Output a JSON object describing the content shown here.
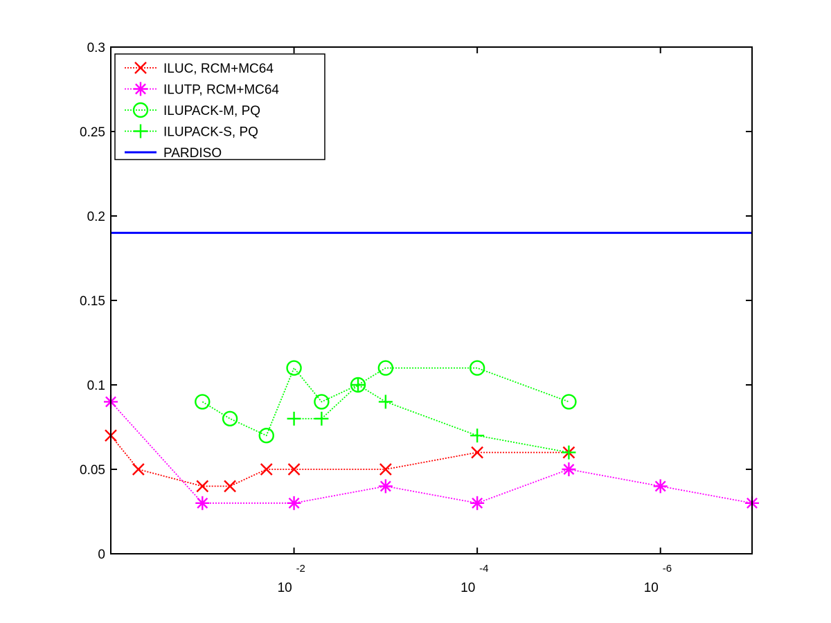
{
  "chart_data": {
    "type": "line",
    "x_scale": "log",
    "x_reversed": true,
    "xlim": [
      1,
      1e-07
    ],
    "ylim": [
      0,
      0.3
    ],
    "grid": false,
    "legend_position": "top-left",
    "x_ticks": [
      {
        "value": 0.01,
        "base": "10",
        "exponent": "-2"
      },
      {
        "value": 0.0001,
        "base": "10",
        "exponent": "-4"
      },
      {
        "value": 1e-06,
        "base": "10",
        "exponent": "-6"
      }
    ],
    "y_ticks": [
      {
        "value": 0,
        "label": "0"
      },
      {
        "value": 0.05,
        "label": "0.05"
      },
      {
        "value": 0.1,
        "label": "0.1"
      },
      {
        "value": 0.15,
        "label": "0.15"
      },
      {
        "value": 0.2,
        "label": "0.2"
      },
      {
        "value": 0.25,
        "label": "0.25"
      },
      {
        "value": 0.3,
        "label": "0.3"
      }
    ],
    "series": [
      {
        "name": "ILUC, RCM+MC64",
        "color": "#ff0000",
        "marker": "x",
        "line": "dotted",
        "points": [
          [
            1,
            0.07
          ],
          [
            0.5,
            0.05
          ],
          [
            0.1,
            0.04
          ],
          [
            0.05,
            0.04
          ],
          [
            0.02,
            0.05
          ],
          [
            0.01,
            0.05
          ],
          [
            0.001,
            0.05
          ],
          [
            0.0001,
            0.06
          ],
          [
            1e-05,
            0.06
          ]
        ]
      },
      {
        "name": "ILUTP, RCM+MC64",
        "color": "#ff00ff",
        "marker": "asterisk",
        "line": "dotted",
        "points": [
          [
            1,
            0.09
          ],
          [
            0.1,
            0.03
          ],
          [
            0.01,
            0.03
          ],
          [
            0.001,
            0.04
          ],
          [
            0.0001,
            0.03
          ],
          [
            1e-05,
            0.05
          ],
          [
            1e-06,
            0.04
          ],
          [
            1e-07,
            0.03
          ]
        ]
      },
      {
        "name": "ILUPACK-M, PQ",
        "color": "#00ff00",
        "marker": "circle",
        "line": "dotted",
        "points": [
          [
            0.1,
            0.09
          ],
          [
            0.05,
            0.08
          ],
          [
            0.02,
            0.07
          ],
          [
            0.01,
            0.11
          ],
          [
            0.005,
            0.09
          ],
          [
            0.002,
            0.1
          ],
          [
            0.001,
            0.11
          ],
          [
            0.0001,
            0.11
          ],
          [
            1e-05,
            0.09
          ]
        ]
      },
      {
        "name": "ILUPACK-S, PQ",
        "color": "#00ff00",
        "marker": "plus",
        "line": "dotted",
        "points": [
          [
            0.01,
            0.08
          ],
          [
            0.005,
            0.08
          ],
          [
            0.002,
            0.1
          ],
          [
            0.001,
            0.09
          ],
          [
            0.0001,
            0.07
          ],
          [
            1e-05,
            0.06
          ]
        ]
      },
      {
        "name": "PARDISO",
        "color": "#0000ff",
        "marker": "none",
        "line": "solid",
        "points": [
          [
            1,
            0.19
          ],
          [
            1e-07,
            0.19
          ]
        ]
      }
    ]
  }
}
